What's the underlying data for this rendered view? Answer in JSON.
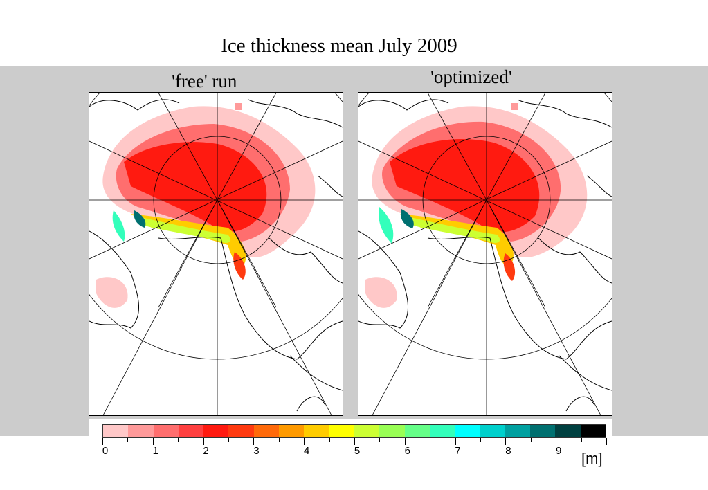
{
  "title": "Ice thickness mean July 2009",
  "panels": [
    {
      "label": "'free' run"
    },
    {
      "label": "'optimized'"
    }
  ],
  "colorbar": {
    "tick_labels": [
      "0",
      "1",
      "2",
      "3",
      "4",
      "5",
      "6",
      "7",
      "8",
      "9"
    ],
    "unit": "[m]",
    "colors": [
      "#ffc8c8",
      "#ff9a9a",
      "#ff6e6e",
      "#ff4040",
      "#ff1a10",
      "#ff3a10",
      "#ff6a0a",
      "#ff9a00",
      "#ffcc00",
      "#ffff00",
      "#ccff33",
      "#99ff55",
      "#66ff88",
      "#33ffbb",
      "#00ffff",
      "#00d0cc",
      "#00a0a0",
      "#007070",
      "#004040",
      "#000000"
    ]
  },
  "colors": {
    "background_band": "#cccccc",
    "land_outline": "#000000"
  }
}
